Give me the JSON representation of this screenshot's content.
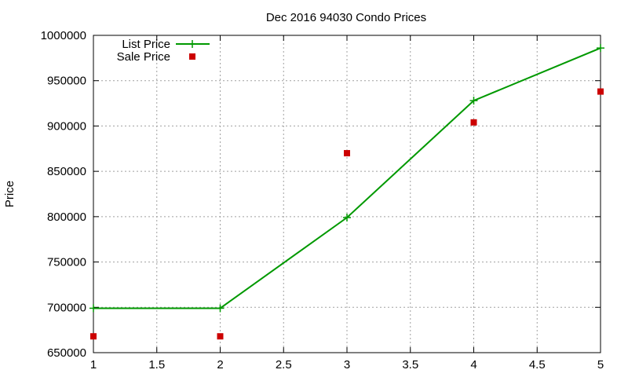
{
  "chart_data": {
    "type": "line",
    "title": "Dec 2016 94030 Condo Prices",
    "xlabel": "",
    "ylabel": "Price",
    "xlim": [
      1,
      5
    ],
    "ylim": [
      650000,
      1000000
    ],
    "x_ticks": [
      1,
      1.5,
      2,
      2.5,
      3,
      3.5,
      4,
      4.5,
      5
    ],
    "x_tick_labels": [
      "1",
      "1.5",
      "2",
      "2.5",
      "3",
      "3.5",
      "4",
      "4.5",
      "5"
    ],
    "y_ticks": [
      650000,
      700000,
      750000,
      800000,
      850000,
      900000,
      950000,
      1000000
    ],
    "y_tick_labels": [
      "650000",
      "700000",
      "750000",
      "800000",
      "850000",
      "900000",
      "950000",
      "1000000"
    ],
    "grid": true,
    "legend_position": "top-left",
    "series": [
      {
        "name": "List Price",
        "style": "line-with-plus-markers",
        "color": "#009900",
        "x": [
          1,
          2,
          3,
          4,
          5
        ],
        "y": [
          699000,
          699000,
          799000,
          928000,
          986000
        ]
      },
      {
        "name": "Sale Price",
        "style": "square-markers",
        "color": "#cc0000",
        "x": [
          1,
          2,
          3,
          4,
          5
        ],
        "y": [
          668000,
          668000,
          870000,
          904000,
          938000
        ]
      }
    ]
  }
}
